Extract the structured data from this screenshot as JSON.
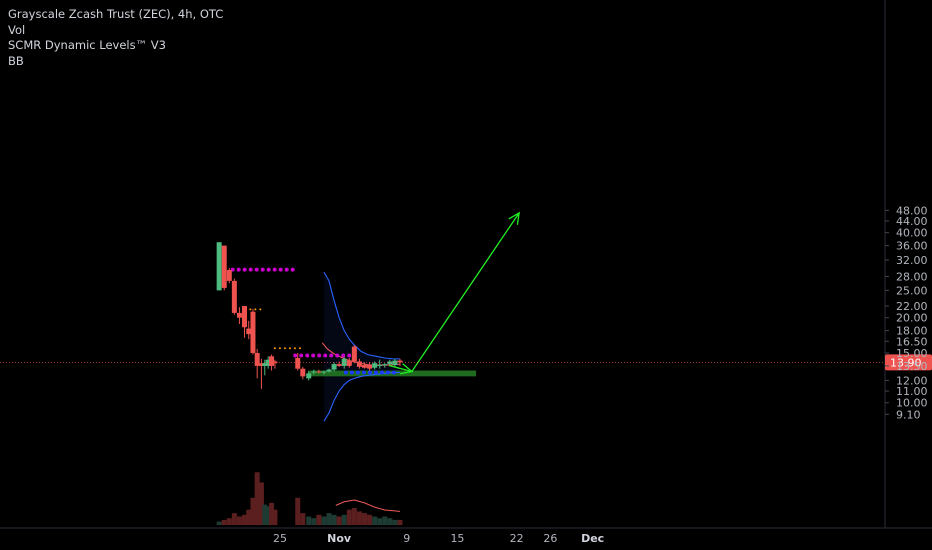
{
  "legend": {
    "title": "Grayscale Zcash Trust (ZEC), 4h, OTC",
    "vol": "Vol",
    "indicator": "SCMR Dynamic Levels™ V3",
    "bb": "BB"
  },
  "colors": {
    "up": "#26a69a",
    "up_bright": "#4cbb7f",
    "down": "#ef5350",
    "vol_up": "#1e3b33",
    "vol_down": "#5c1f1f",
    "bb_band": "#2962ff",
    "bb_mid": "#f05a5a",
    "level_purple": "#cc00cc",
    "level_blue": "#1e3cff",
    "level_orange": "#ff9800",
    "arrow": "#22ee22",
    "zone": "#1f6b1f",
    "price_tag": "#ef5350"
  },
  "chart_data": {
    "type": "candlestick",
    "title": "Grayscale Zcash Trust (ZEC), 4h, OTC",
    "y_scale": "log",
    "ylim": [
      8.6,
      50
    ],
    "y_ticks": [
      "48.00",
      "44.00",
      "40.00",
      "36.00",
      "32.00",
      "28.00",
      "25.00",
      "22.00",
      "20.00",
      "18.00",
      "16.50",
      "15.00",
      "13.50",
      "12.00",
      "11.00",
      "10.00",
      "9.10"
    ],
    "x_ticks": [
      {
        "label": "25",
        "x": 0
      },
      {
        "label": "Nov",
        "x": 7
      },
      {
        "label": "9",
        "x": 15
      },
      {
        "label": "15",
        "x": 21
      },
      {
        "label": "22",
        "x": 28
      },
      {
        "label": "26",
        "x": 32
      },
      {
        "label": "Dec",
        "x": 37
      }
    ],
    "last_price": "13.90",
    "candles": [
      {
        "x": -7.2,
        "o": 25.0,
        "h": 37.0,
        "l": 25.0,
        "c": 37.0,
        "v": 0.2
      },
      {
        "x": -6.6,
        "o": 36.0,
        "h": 36.0,
        "l": 25.0,
        "c": 25.5,
        "v": 0.3
      },
      {
        "x": -6.0,
        "o": 29.5,
        "h": 30.0,
        "l": 26.5,
        "c": 27.0,
        "v": 0.4
      },
      {
        "x": -5.4,
        "o": 27.0,
        "h": 27.5,
        "l": 20.5,
        "c": 20.8,
        "v": 0.7
      },
      {
        "x": -4.8,
        "o": 20.8,
        "h": 21.8,
        "l": 19.0,
        "c": 20.0,
        "v": 0.5
      },
      {
        "x": -4.2,
        "o": 22.0,
        "h": 22.0,
        "l": 17.0,
        "c": 18.5,
        "v": 0.6
      },
      {
        "x": -3.7,
        "o": 18.3,
        "h": 19.5,
        "l": 16.8,
        "c": 17.5,
        "v": 0.9
      },
      {
        "x": -3.2,
        "o": 21.0,
        "h": 21.5,
        "l": 14.8,
        "c": 15.0,
        "v": 1.6
      },
      {
        "x": -2.7,
        "o": 15.0,
        "h": 15.5,
        "l": 12.2,
        "c": 13.5,
        "v": 3.1
      },
      {
        "x": -2.2,
        "o": 13.8,
        "h": 14.3,
        "l": 11.2,
        "c": 13.5,
        "v": 2.5
      },
      {
        "x": -1.8,
        "o": 13.5,
        "h": 14.2,
        "l": 12.5,
        "c": 13.8,
        "v": 1.2
      },
      {
        "x": -1.4,
        "o": 13.5,
        "h": 14.6,
        "l": 13.2,
        "c": 14.2,
        "v": 1.1
      },
      {
        "x": -1.0,
        "o": 14.6,
        "h": 14.8,
        "l": 13.0,
        "c": 13.5,
        "v": 1.3
      },
      {
        "x": -0.6,
        "o": 14.0,
        "h": 14.2,
        "l": 13.2,
        "c": 13.8,
        "v": 0.9
      },
      {
        "x": 2.1,
        "o": 14.4,
        "h": 15.0,
        "l": 13.0,
        "c": 13.2,
        "v": 1.6
      },
      {
        "x": 2.7,
        "o": 13.2,
        "h": 13.4,
        "l": 12.1,
        "c": 12.4,
        "v": 0.7
      },
      {
        "x": 3.4,
        "o": 12.2,
        "h": 12.9,
        "l": 12.0,
        "c": 12.7,
        "v": 0.5
      },
      {
        "x": 4.0,
        "o": 12.8,
        "h": 13.1,
        "l": 12.6,
        "c": 12.9,
        "v": 0.4
      },
      {
        "x": 4.6,
        "o": 12.9,
        "h": 13.1,
        "l": 12.7,
        "c": 12.8,
        "v": 0.6
      },
      {
        "x": 5.2,
        "o": 12.8,
        "h": 13.0,
        "l": 12.6,
        "c": 12.9,
        "v": 0.5
      },
      {
        "x": 5.8,
        "o": 12.9,
        "h": 13.2,
        "l": 12.8,
        "c": 13.1,
        "v": 0.7
      },
      {
        "x": 6.4,
        "o": 13.1,
        "h": 13.9,
        "l": 12.9,
        "c": 13.7,
        "v": 0.6
      },
      {
        "x": 7.0,
        "o": 13.7,
        "h": 14.0,
        "l": 13.4,
        "c": 13.5,
        "v": 0.5
      },
      {
        "x": 7.6,
        "o": 13.5,
        "h": 14.5,
        "l": 13.2,
        "c": 14.3,
        "v": 0.6
      },
      {
        "x": 8.2,
        "o": 14.1,
        "h": 14.4,
        "l": 13.3,
        "c": 13.5,
        "v": 0.9
      },
      {
        "x": 8.8,
        "o": 15.8,
        "h": 16.0,
        "l": 13.8,
        "c": 14.0,
        "v": 1.0
      },
      {
        "x": 9.4,
        "o": 14.0,
        "h": 14.3,
        "l": 13.2,
        "c": 13.4,
        "v": 0.8
      },
      {
        "x": 10.0,
        "o": 13.6,
        "h": 13.9,
        "l": 13.2,
        "c": 13.3,
        "v": 0.7
      },
      {
        "x": 10.6,
        "o": 13.6,
        "h": 13.9,
        "l": 13.0,
        "c": 13.2,
        "v": 0.6
      },
      {
        "x": 11.2,
        "o": 13.3,
        "h": 14.0,
        "l": 13.1,
        "c": 13.8,
        "v": 0.5
      },
      {
        "x": 11.8,
        "o": 13.5,
        "h": 14.2,
        "l": 13.2,
        "c": 13.6,
        "v": 0.4
      },
      {
        "x": 12.4,
        "o": 13.6,
        "h": 13.8,
        "l": 13.3,
        "c": 13.7,
        "v": 0.5
      },
      {
        "x": 13.0,
        "o": 13.7,
        "h": 14.2,
        "l": 13.5,
        "c": 14.0,
        "v": 0.4
      },
      {
        "x": 13.6,
        "o": 13.6,
        "h": 14.3,
        "l": 13.4,
        "c": 14.1,
        "v": 0.3
      },
      {
        "x": 14.2,
        "o": 14.1,
        "h": 14.3,
        "l": 13.5,
        "c": 13.9,
        "v": 0.3
      }
    ],
    "bollinger": {
      "upper": [
        {
          "x": 5.2,
          "y": 29.0
        },
        {
          "x": 5.8,
          "y": 27.0
        },
        {
          "x": 6.4,
          "y": 23.0
        },
        {
          "x": 7.0,
          "y": 20.0
        },
        {
          "x": 7.6,
          "y": 18.0
        },
        {
          "x": 8.2,
          "y": 16.8
        },
        {
          "x": 8.8,
          "y": 16.0
        },
        {
          "x": 9.6,
          "y": 15.2
        },
        {
          "x": 10.4,
          "y": 14.8
        },
        {
          "x": 11.4,
          "y": 14.6
        },
        {
          "x": 12.4,
          "y": 14.4
        },
        {
          "x": 13.4,
          "y": 14.3
        },
        {
          "x": 14.2,
          "y": 14.3
        }
      ],
      "middle": [
        {
          "x": 5.0,
          "y": 16.3
        },
        {
          "x": 5.6,
          "y": 15.5
        },
        {
          "x": 6.4,
          "y": 14.9
        },
        {
          "x": 7.2,
          "y": 14.5
        },
        {
          "x": 8.2,
          "y": 14.1
        },
        {
          "x": 9.4,
          "y": 13.8
        },
        {
          "x": 10.6,
          "y": 13.6
        },
        {
          "x": 11.8,
          "y": 13.6
        },
        {
          "x": 13.0,
          "y": 13.6
        },
        {
          "x": 14.2,
          "y": 13.7
        }
      ],
      "lower": [
        {
          "x": 5.2,
          "y": 8.6
        },
        {
          "x": 5.8,
          "y": 9.2
        },
        {
          "x": 6.4,
          "y": 10.2
        },
        {
          "x": 7.0,
          "y": 11.0
        },
        {
          "x": 7.6,
          "y": 11.6
        },
        {
          "x": 8.2,
          "y": 12.0
        },
        {
          "x": 8.8,
          "y": 12.2
        },
        {
          "x": 9.6,
          "y": 12.4
        },
        {
          "x": 10.4,
          "y": 12.5
        },
        {
          "x": 11.4,
          "y": 12.6
        },
        {
          "x": 12.4,
          "y": 12.7
        },
        {
          "x": 13.4,
          "y": 12.8
        },
        {
          "x": 14.2,
          "y": 12.8
        }
      ]
    },
    "levels": [
      {
        "color_key": "level_purple",
        "y": 29.6,
        "x_from": -5.6,
        "x_to": 1.6
      },
      {
        "color_key": "level_orange",
        "y": 21.4,
        "x_from": -4.1,
        "x_to": -2.0
      },
      {
        "color_key": "level_orange",
        "y": 15.6,
        "x_from": -0.6,
        "x_to": 2.8
      },
      {
        "color_key": "level_purple",
        "y": 14.7,
        "x_from": 1.8,
        "x_to": 8.6
      },
      {
        "color_key": "level_blue",
        "y": 12.8,
        "x_from": 7.8,
        "x_to": 13.8
      }
    ],
    "support_zone": {
      "y_low": 12.4,
      "y_high": 13.0,
      "x_from": 3.3,
      "x_to": 23.2
    },
    "projection": [
      {
        "x": 12.9,
        "y": 13.55
      },
      {
        "x": 15.6,
        "y": 12.9
      },
      {
        "x": 28.3,
        "y": 47.0
      }
    ],
    "volume_ma": [
      {
        "x": 6.6,
        "y": 0.55
      },
      {
        "x": 7.6,
        "y": 0.65
      },
      {
        "x": 8.8,
        "y": 0.7
      },
      {
        "x": 10.0,
        "y": 0.62
      },
      {
        "x": 11.2,
        "y": 0.5
      },
      {
        "x": 12.4,
        "y": 0.42
      },
      {
        "x": 14.2,
        "y": 0.38
      }
    ]
  }
}
